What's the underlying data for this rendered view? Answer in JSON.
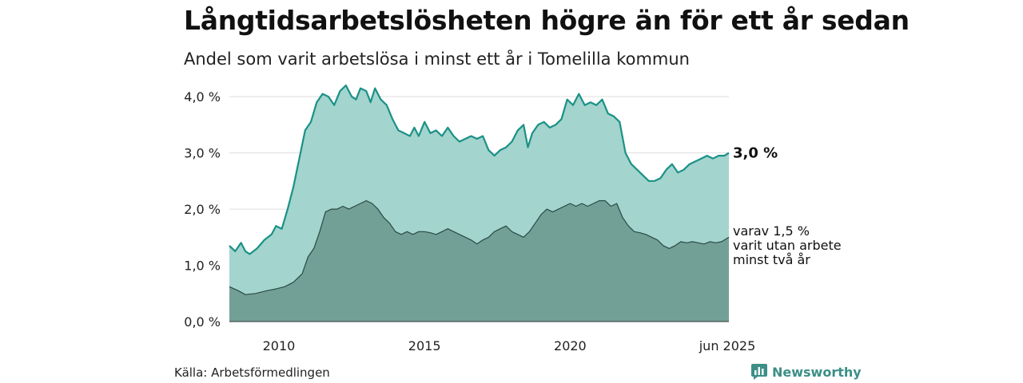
{
  "title": "Långtidsarbetslösheten högre än för ett år sedan",
  "subtitle": "Andel som varit arbetslösa i minst ett år i Tomelilla kommun",
  "source": "Källa: Arbetsförmedlingen",
  "brand": "Newsworthy",
  "end_label": "3,0 %",
  "sub_label_lines": [
    "varav 1,5 %",
    "varit utan arbete",
    "minst två år"
  ],
  "colors": {
    "outer_fill": "#a3d4cd",
    "outer_line": "#1a9186",
    "inner_fill": "#72a097",
    "inner_line": "#2a4a44",
    "grid": "#dddddd",
    "brand": "#3b8f86"
  },
  "chart_data": {
    "type": "area",
    "x_range": [
      "2008-04",
      "2025-06"
    ],
    "ylim": [
      0,
      4.3
    ],
    "y_ticks": [
      0,
      1,
      2,
      3,
      4
    ],
    "y_tick_labels": [
      "0,0 %",
      "1,0 %",
      "2,0 %",
      "3,0 %",
      "4,0 %"
    ],
    "x_ticks": [
      2010,
      2015,
      2020,
      2025.45
    ],
    "x_tick_labels": [
      "2010",
      "2015",
      "2020",
      "jun 2025"
    ],
    "grid": true,
    "series": [
      {
        "name": "minst ett år",
        "points": [
          [
            2008.3,
            1.35
          ],
          [
            2008.5,
            1.25
          ],
          [
            2008.7,
            1.4
          ],
          [
            2008.85,
            1.25
          ],
          [
            2009.0,
            1.2
          ],
          [
            2009.25,
            1.3
          ],
          [
            2009.5,
            1.45
          ],
          [
            2009.75,
            1.55
          ],
          [
            2009.9,
            1.7
          ],
          [
            2010.1,
            1.65
          ],
          [
            2010.3,
            2.0
          ],
          [
            2010.5,
            2.4
          ],
          [
            2010.7,
            2.9
          ],
          [
            2010.9,
            3.4
          ],
          [
            2011.1,
            3.55
          ],
          [
            2011.3,
            3.9
          ],
          [
            2011.5,
            4.05
          ],
          [
            2011.7,
            4.0
          ],
          [
            2011.9,
            3.85
          ],
          [
            2012.1,
            4.1
          ],
          [
            2012.3,
            4.2
          ],
          [
            2012.5,
            4.0
          ],
          [
            2012.65,
            3.95
          ],
          [
            2012.8,
            4.15
          ],
          [
            2013.0,
            4.1
          ],
          [
            2013.15,
            3.9
          ],
          [
            2013.3,
            4.15
          ],
          [
            2013.5,
            3.95
          ],
          [
            2013.7,
            3.85
          ],
          [
            2013.9,
            3.6
          ],
          [
            2014.1,
            3.4
          ],
          [
            2014.3,
            3.35
          ],
          [
            2014.5,
            3.3
          ],
          [
            2014.65,
            3.45
          ],
          [
            2014.8,
            3.3
          ],
          [
            2015.0,
            3.55
          ],
          [
            2015.2,
            3.35
          ],
          [
            2015.4,
            3.4
          ],
          [
            2015.6,
            3.3
          ],
          [
            2015.8,
            3.45
          ],
          [
            2016.0,
            3.3
          ],
          [
            2016.2,
            3.2
          ],
          [
            2016.4,
            3.25
          ],
          [
            2016.6,
            3.3
          ],
          [
            2016.8,
            3.25
          ],
          [
            2017.0,
            3.3
          ],
          [
            2017.2,
            3.05
          ],
          [
            2017.4,
            2.95
          ],
          [
            2017.6,
            3.05
          ],
          [
            2017.8,
            3.1
          ],
          [
            2018.0,
            3.2
          ],
          [
            2018.2,
            3.4
          ],
          [
            2018.4,
            3.5
          ],
          [
            2018.55,
            3.1
          ],
          [
            2018.7,
            3.35
          ],
          [
            2018.9,
            3.5
          ],
          [
            2019.1,
            3.55
          ],
          [
            2019.3,
            3.45
          ],
          [
            2019.5,
            3.5
          ],
          [
            2019.7,
            3.6
          ],
          [
            2019.9,
            3.95
          ],
          [
            2020.1,
            3.85
          ],
          [
            2020.3,
            4.05
          ],
          [
            2020.5,
            3.85
          ],
          [
            2020.7,
            3.9
          ],
          [
            2020.9,
            3.85
          ],
          [
            2021.1,
            3.95
          ],
          [
            2021.3,
            3.7
          ],
          [
            2021.5,
            3.65
          ],
          [
            2021.7,
            3.55
          ],
          [
            2021.9,
            3.0
          ],
          [
            2022.1,
            2.8
          ],
          [
            2022.3,
            2.7
          ],
          [
            2022.5,
            2.6
          ],
          [
            2022.7,
            2.5
          ],
          [
            2022.9,
            2.5
          ],
          [
            2023.1,
            2.55
          ],
          [
            2023.3,
            2.7
          ],
          [
            2023.5,
            2.8
          ],
          [
            2023.7,
            2.65
          ],
          [
            2023.9,
            2.7
          ],
          [
            2024.1,
            2.8
          ],
          [
            2024.3,
            2.85
          ],
          [
            2024.5,
            2.9
          ],
          [
            2024.7,
            2.95
          ],
          [
            2024.9,
            2.9
          ],
          [
            2025.1,
            2.95
          ],
          [
            2025.3,
            2.95
          ],
          [
            2025.45,
            3.0
          ]
        ]
      },
      {
        "name": "minst två år",
        "points": [
          [
            2008.3,
            0.62
          ],
          [
            2008.6,
            0.55
          ],
          [
            2008.85,
            0.48
          ],
          [
            2009.2,
            0.5
          ],
          [
            2009.6,
            0.55
          ],
          [
            2009.9,
            0.58
          ],
          [
            2010.2,
            0.62
          ],
          [
            2010.5,
            0.7
          ],
          [
            2010.8,
            0.85
          ],
          [
            2011.0,
            1.15
          ],
          [
            2011.2,
            1.3
          ],
          [
            2011.4,
            1.6
          ],
          [
            2011.6,
            1.95
          ],
          [
            2011.8,
            2.0
          ],
          [
            2012.0,
            2.0
          ],
          [
            2012.2,
            2.05
          ],
          [
            2012.4,
            2.0
          ],
          [
            2012.6,
            2.05
          ],
          [
            2012.8,
            2.1
          ],
          [
            2013.0,
            2.15
          ],
          [
            2013.2,
            2.1
          ],
          [
            2013.4,
            2.0
          ],
          [
            2013.6,
            1.85
          ],
          [
            2013.8,
            1.75
          ],
          [
            2014.0,
            1.6
          ],
          [
            2014.2,
            1.55
          ],
          [
            2014.4,
            1.6
          ],
          [
            2014.6,
            1.55
          ],
          [
            2014.8,
            1.6
          ],
          [
            2015.0,
            1.6
          ],
          [
            2015.2,
            1.58
          ],
          [
            2015.4,
            1.55
          ],
          [
            2015.6,
            1.6
          ],
          [
            2015.8,
            1.65
          ],
          [
            2016.0,
            1.6
          ],
          [
            2016.2,
            1.55
          ],
          [
            2016.4,
            1.5
          ],
          [
            2016.6,
            1.45
          ],
          [
            2016.8,
            1.38
          ],
          [
            2017.0,
            1.45
          ],
          [
            2017.2,
            1.5
          ],
          [
            2017.4,
            1.6
          ],
          [
            2017.6,
            1.65
          ],
          [
            2017.8,
            1.7
          ],
          [
            2018.0,
            1.6
          ],
          [
            2018.2,
            1.55
          ],
          [
            2018.4,
            1.5
          ],
          [
            2018.6,
            1.6
          ],
          [
            2018.8,
            1.75
          ],
          [
            2019.0,
            1.9
          ],
          [
            2019.2,
            2.0
          ],
          [
            2019.4,
            1.95
          ],
          [
            2019.6,
            2.0
          ],
          [
            2019.8,
            2.05
          ],
          [
            2020.0,
            2.1
          ],
          [
            2020.2,
            2.05
          ],
          [
            2020.4,
            2.1
          ],
          [
            2020.6,
            2.05
          ],
          [
            2020.8,
            2.1
          ],
          [
            2021.0,
            2.15
          ],
          [
            2021.2,
            2.15
          ],
          [
            2021.4,
            2.05
          ],
          [
            2021.6,
            2.1
          ],
          [
            2021.8,
            1.85
          ],
          [
            2022.0,
            1.7
          ],
          [
            2022.2,
            1.6
          ],
          [
            2022.4,
            1.58
          ],
          [
            2022.6,
            1.55
          ],
          [
            2022.8,
            1.5
          ],
          [
            2023.0,
            1.45
          ],
          [
            2023.2,
            1.35
          ],
          [
            2023.4,
            1.3
          ],
          [
            2023.6,
            1.35
          ],
          [
            2023.8,
            1.42
          ],
          [
            2024.0,
            1.4
          ],
          [
            2024.2,
            1.42
          ],
          [
            2024.4,
            1.4
          ],
          [
            2024.6,
            1.38
          ],
          [
            2024.8,
            1.42
          ],
          [
            2025.0,
            1.4
          ],
          [
            2025.2,
            1.42
          ],
          [
            2025.45,
            1.5
          ]
        ]
      }
    ]
  }
}
